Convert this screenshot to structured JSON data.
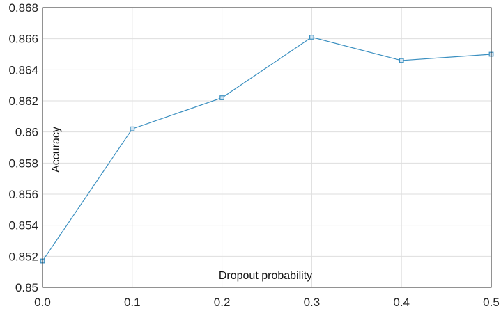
{
  "chart_data": {
    "type": "line",
    "title": "",
    "xlabel": "Dropout probability",
    "ylabel": "Accuracy",
    "xlim": [
      0.0,
      0.5
    ],
    "ylim": [
      0.85,
      0.868
    ],
    "grid": true,
    "x_ticks": [
      0.0,
      0.1,
      0.2,
      0.3,
      0.4,
      0.5
    ],
    "x_tick_labels": [
      "0.0",
      "0.1",
      "0.2",
      "0.3",
      "0.4",
      "0.5"
    ],
    "y_ticks": [
      0.85,
      0.852,
      0.854,
      0.856,
      0.858,
      0.86,
      0.862,
      0.864,
      0.866,
      0.868
    ],
    "y_tick_labels": [
      "0.85",
      "0.852",
      "0.854",
      "0.856",
      "0.858",
      "0.86",
      "0.862",
      "0.864",
      "0.866",
      "0.868"
    ],
    "series": [
      {
        "color": "#3a8fc0",
        "marker": "square",
        "x": [
          0.0,
          0.1,
          0.2,
          0.3,
          0.4,
          0.5
        ],
        "y": [
          0.8517,
          0.8602,
          0.8622,
          0.8661,
          0.8646,
          0.865
        ]
      }
    ]
  }
}
